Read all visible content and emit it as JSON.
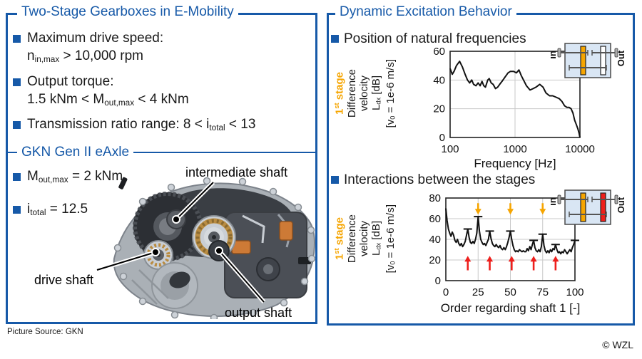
{
  "slide": {
    "copyright": "© WZL",
    "picture_source": "Picture Source: GKN"
  },
  "colors": {
    "blue": "#1659A8",
    "orange": "#F6A500",
    "red": "#EE1F1C",
    "line": "#111111",
    "grid": "#c9c9c9",
    "inset_fill": "#D9E6F4",
    "gear_white": "#FFFFFF"
  },
  "left_panel": {
    "title": "Two-Stage Gearboxes in E-Mobility",
    "bullets": [
      {
        "line1": [
          {
            "t": "Maximum drive speed:"
          }
        ],
        "line2": [
          {
            "t": "n"
          },
          {
            "sub": "in,max"
          },
          {
            "t": " > 10,000 rpm"
          }
        ]
      },
      {
        "line1": [
          {
            "t": "Output torque:"
          }
        ],
        "line2": [
          {
            "t": "1.5 kNm < M"
          },
          {
            "sub": "out,max"
          },
          {
            "t": " < 4 kNm"
          }
        ]
      },
      {
        "line1": [
          {
            "t": "Transmission ratio range: 8 < i"
          },
          {
            "sub": "total"
          },
          {
            "t": " < 13"
          }
        ]
      }
    ],
    "subsection": {
      "title": "GKN Gen II eAxle",
      "bullets": [
        [
          {
            "t": "M"
          },
          {
            "sub": "out,max"
          },
          {
            "t": " = 2 kNm"
          }
        ],
        [
          {
            "t": "i"
          },
          {
            "sub": "total"
          },
          {
            "t": " = 12.5"
          }
        ]
      ],
      "callouts": {
        "intermediate": "intermediate shaft",
        "drive": "drive shaft",
        "output": "output shaft"
      }
    }
  },
  "right_panel": {
    "title": "Dynamic Excitation Behavior",
    "section1_heading": "Position of natural frequencies",
    "section2_heading": "Interactions between the stages",
    "ylabel_blocks": [
      {
        "rich": [
          {
            "t": "1"
          },
          {
            "sup": "st"
          },
          {
            "t": " stage"
          }
        ],
        "stage": true
      },
      {
        "rich": [
          {
            "t": "Difference"
          }
        ]
      },
      {
        "rich": [
          {
            "t": "velocity"
          }
        ]
      },
      {
        "rich": [
          {
            "t": "L"
          },
          {
            "sub": "dx"
          },
          {
            "t": " [dB]"
          }
        ]
      },
      {
        "rich": [
          {
            "t": "[v"
          },
          {
            "sub": "0"
          },
          {
            "t": " = 1e-6 m/s]"
          }
        ]
      }
    ],
    "insets": [
      {
        "in": "In",
        "out": "Out",
        "stage1_color": "orange",
        "stage2_color": "white"
      },
      {
        "in": "In",
        "out": "Out",
        "stage1_color": "orange",
        "stage2_color": "red"
      }
    ]
  },
  "chart_data": [
    {
      "type": "line",
      "title": "Position of natural frequencies",
      "xlabel": "Frequency [Hz]",
      "ylabel": "Difference velocity L_dx [dB] [v_0 = 1e-6 m/s]",
      "xscale": "log",
      "xlim": [
        100,
        10000
      ],
      "ylim": [
        0,
        60
      ],
      "xticks": [
        100,
        1000,
        10000
      ],
      "yticks": [
        0,
        20,
        40,
        60
      ],
      "grid": true,
      "legend": "none",
      "points": [
        [
          100,
          48
        ],
        [
          108,
          44
        ],
        [
          115,
          46
        ],
        [
          125,
          50
        ],
        [
          140,
          53
        ],
        [
          155,
          49
        ],
        [
          170,
          44
        ],
        [
          185,
          40
        ],
        [
          200,
          38
        ],
        [
          215,
          40
        ],
        [
          230,
          37
        ],
        [
          250,
          36
        ],
        [
          270,
          38
        ],
        [
          290,
          36
        ],
        [
          310,
          39
        ],
        [
          330,
          36
        ],
        [
          350,
          35
        ],
        [
          380,
          40
        ],
        [
          400,
          41
        ],
        [
          430,
          38
        ],
        [
          460,
          37
        ],
        [
          500,
          34
        ],
        [
          540,
          35
        ],
        [
          580,
          37
        ],
        [
          630,
          39
        ],
        [
          700,
          42
        ],
        [
          780,
          45
        ],
        [
          850,
          46
        ],
        [
          950,
          46
        ],
        [
          1050,
          45
        ],
        [
          1150,
          47
        ],
        [
          1250,
          43
        ],
        [
          1350,
          40
        ],
        [
          1500,
          36
        ],
        [
          1700,
          33
        ],
        [
          1900,
          34
        ],
        [
          2100,
          35
        ],
        [
          2400,
          37
        ],
        [
          2700,
          35
        ],
        [
          3000,
          31
        ],
        [
          3400,
          29
        ],
        [
          3800,
          29
        ],
        [
          4300,
          28
        ],
        [
          4800,
          27
        ],
        [
          5300,
          25
        ],
        [
          5800,
          22
        ],
        [
          6300,
          21
        ],
        [
          6800,
          21
        ],
        [
          7300,
          20
        ],
        [
          7800,
          17
        ],
        [
          8300,
          12
        ],
        [
          8800,
          9
        ],
        [
          9300,
          6
        ],
        [
          9700,
          3
        ],
        [
          10000,
          0
        ]
      ]
    },
    {
      "type": "line",
      "title": "Interactions between the stages",
      "xlabel": "Order regarding shaft 1 [-]",
      "ylabel": "Difference velocity L_dx [dB] [v_0 = 1e-6 m/s]",
      "xscale": "linear",
      "xlim": [
        0,
        100
      ],
      "ylim": [
        0,
        80
      ],
      "xticks": [
        0,
        25,
        50,
        75,
        100
      ],
      "yticks": [
        0,
        20,
        40,
        60,
        80
      ],
      "grid": true,
      "legend": "none",
      "points": [
        [
          0,
          70
        ],
        [
          1,
          58
        ],
        [
          2,
          50
        ],
        [
          3,
          46
        ],
        [
          4,
          43
        ],
        [
          5,
          47
        ],
        [
          6,
          44
        ],
        [
          7,
          39
        ],
        [
          8,
          37
        ],
        [
          9,
          40
        ],
        [
          10,
          36
        ],
        [
          11,
          34
        ],
        [
          12,
          36
        ],
        [
          13,
          33
        ],
        [
          14,
          35
        ],
        [
          15,
          38
        ],
        [
          16,
          44
        ],
        [
          17,
          50
        ],
        [
          18,
          42
        ],
        [
          19,
          37
        ],
        [
          20,
          36
        ],
        [
          21,
          38
        ],
        [
          22,
          36
        ],
        [
          23,
          40
        ],
        [
          24,
          46
        ],
        [
          25,
          62
        ],
        [
          26,
          48
        ],
        [
          27,
          40
        ],
        [
          28,
          37
        ],
        [
          29,
          35
        ],
        [
          30,
          36
        ],
        [
          31,
          34
        ],
        [
          32,
          37
        ],
        [
          33,
          40
        ],
        [
          34,
          48
        ],
        [
          35,
          41
        ],
        [
          36,
          36
        ],
        [
          37,
          34
        ],
        [
          38,
          33
        ],
        [
          39,
          35
        ],
        [
          40,
          33
        ],
        [
          41,
          32
        ],
        [
          42,
          34
        ],
        [
          43,
          31
        ],
        [
          44,
          30
        ],
        [
          45,
          32
        ],
        [
          46,
          30
        ],
        [
          47,
          33
        ],
        [
          48,
          37
        ],
        [
          49,
          42
        ],
        [
          50,
          48
        ],
        [
          51,
          40
        ],
        [
          52,
          34
        ],
        [
          53,
          30
        ],
        [
          54,
          28
        ],
        [
          55,
          29
        ],
        [
          56,
          28
        ],
        [
          57,
          30
        ],
        [
          58,
          29
        ],
        [
          59,
          28
        ],
        [
          60,
          29
        ],
        [
          61,
          28
        ],
        [
          62,
          28
        ],
        [
          63,
          31
        ],
        [
          64,
          29
        ],
        [
          65,
          33
        ],
        [
          66,
          30
        ],
        [
          67,
          35
        ],
        [
          68,
          39
        ],
        [
          69,
          32
        ],
        [
          70,
          29
        ],
        [
          71,
          28
        ],
        [
          72,
          30
        ],
        [
          73,
          28
        ],
        [
          74,
          33
        ],
        [
          75,
          45
        ],
        [
          76,
          34
        ],
        [
          77,
          29
        ],
        [
          78,
          27
        ],
        [
          79,
          29
        ],
        [
          80,
          27
        ],
        [
          81,
          30
        ],
        [
          82,
          28
        ],
        [
          83,
          31
        ],
        [
          84,
          30
        ],
        [
          85,
          35
        ],
        [
          86,
          30
        ],
        [
          87,
          27
        ],
        [
          88,
          28
        ],
        [
          89,
          26
        ],
        [
          90,
          28
        ],
        [
          91,
          27
        ],
        [
          92,
          30
        ],
        [
          93,
          28
        ],
        [
          94,
          26
        ],
        [
          95,
          28
        ],
        [
          96,
          30
        ],
        [
          97,
          28
        ],
        [
          98,
          32
        ],
        [
          99,
          35
        ],
        [
          100,
          39
        ]
      ],
      "peak_caps": [
        [
          17,
          50
        ],
        [
          25,
          62
        ],
        [
          34,
          48
        ],
        [
          50,
          48
        ],
        [
          68,
          39
        ],
        [
          75,
          45
        ],
        [
          85,
          35
        ],
        [
          100,
          39
        ]
      ],
      "arrows_down_orange": {
        "x": [
          25,
          50,
          75
        ],
        "from": 75,
        "to": 64
      },
      "arrows_up_red": {
        "x": [
          17,
          34,
          51,
          68,
          85
        ],
        "from": 10,
        "to": 24
      }
    }
  ]
}
